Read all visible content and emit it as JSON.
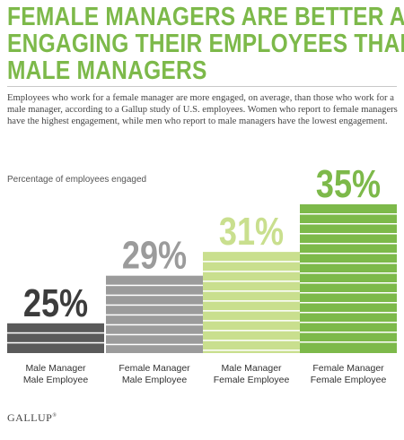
{
  "header": {
    "title_lines": [
      "FEMALE MANAGERS ARE BETTER AT",
      "ENGAGING THEIR EMPLOYEES THAN",
      "MALE MANAGERS"
    ],
    "description": "Employees who work for a female manager are more engaged, on average, than those who work for a male manager, according to a Gallup study of U.S. employees. Women who report to female managers have the highest engagement, while men who report to male managers have the lowest engagement."
  },
  "footer": {
    "logo_text": "GALLUP",
    "logo_mark": "®"
  },
  "chart_data": {
    "type": "bar",
    "title": "FEMALE MANAGERS ARE BETTER AT ENGAGING THEIR EMPLOYEES THAN MALE MANAGERS",
    "ylabel": "Percentage of employees engaged",
    "ylim": [
      22.5,
      35
    ],
    "categories": [
      [
        "Male Manager",
        "Male Employee"
      ],
      [
        "Female Manager",
        "Male Employee"
      ],
      [
        "Male Manager",
        "Female Employee"
      ],
      [
        "Female Manager",
        "Female Employee"
      ]
    ],
    "values": [
      25,
      29,
      31,
      35
    ],
    "value_labels": [
      "25%",
      "29%",
      "31%",
      "35%"
    ],
    "colors": [
      "#5a5a5a",
      "#9b9b9b",
      "#c9df8e",
      "#7db94a"
    ],
    "label_colors": [
      "#3c3c3c",
      "#9b9b9b",
      "#c9df8e",
      "#7db94a"
    ],
    "legend": "none",
    "grid": false
  }
}
